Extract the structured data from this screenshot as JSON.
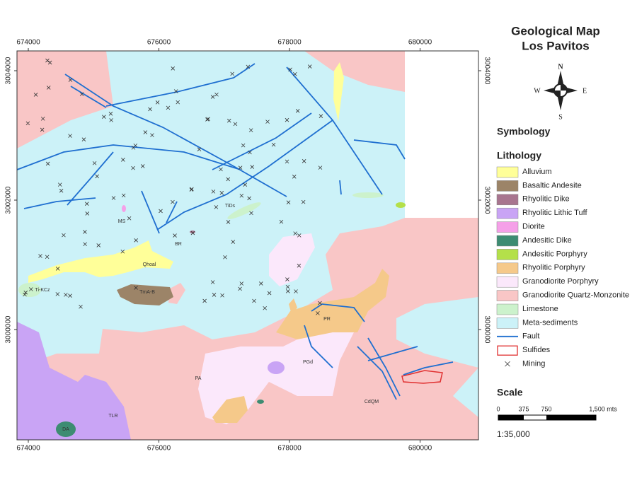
{
  "title": {
    "line1": "Geological Map",
    "line2": "Los Pavitos"
  },
  "compass": {
    "n": "N",
    "s": "S",
    "e": "E",
    "w": "W"
  },
  "axes": {
    "x_ticks": [
      674000,
      676000,
      678000,
      680000
    ],
    "y_ticks": [
      3000000,
      3002000,
      3004000
    ]
  },
  "symbology": "Symbology",
  "lithology": "Lithology",
  "legend": [
    {
      "label": "Alluvium",
      "color": "#ffff99",
      "symbol": "fill"
    },
    {
      "label": "Basaltic Andesite",
      "color": "#9c8468",
      "symbol": "fill"
    },
    {
      "label": "Rhyolitic Dike",
      "color": "#a8758f",
      "symbol": "fill"
    },
    {
      "label": "Rhyolitic Lithic Tuff",
      "color": "#c9a4f5",
      "symbol": "fill"
    },
    {
      "label": "Diorite",
      "color": "#f5a0e8",
      "symbol": "fill"
    },
    {
      "label": "Andesitic Dike",
      "color": "#3d8c72",
      "symbol": "fill"
    },
    {
      "label": "Andesitic Porphyry",
      "color": "#b4e04a",
      "symbol": "fill"
    },
    {
      "label": "Rhyolitic Porphyry",
      "color": "#f5c98a",
      "symbol": "fill"
    },
    {
      "label": "Granodiorite Porphyry",
      "color": "#fbe8fb",
      "symbol": "fill"
    },
    {
      "label": "Granodiorite Quartz-Monzonite",
      "color": "#f9c6c6",
      "symbol": "fill"
    },
    {
      "label": "Limestone",
      "color": "#ccf2cc",
      "symbol": "fill"
    },
    {
      "label": "Meta-sediments",
      "color": "#ccf2f8",
      "symbol": "fill"
    },
    {
      "label": "Fault",
      "color": "#1f6fd0",
      "symbol": "line"
    },
    {
      "label": "Sulfides",
      "color": "#e03030",
      "symbol": "outline"
    },
    {
      "label": "Mining",
      "color": "#333333",
      "symbol": "cross"
    }
  ],
  "scale": {
    "heading": "Scale",
    "labels": [
      "0",
      "375",
      "750",
      "1,500 mts"
    ],
    "ratio": "1:35,000"
  },
  "map_labels": [
    "MS",
    "Qhoal",
    "TmA-B",
    "PR",
    "PGd",
    "TLR",
    "DA",
    "PA",
    "CdQM",
    "Ti-KCz",
    "TiDs",
    "BR"
  ]
}
